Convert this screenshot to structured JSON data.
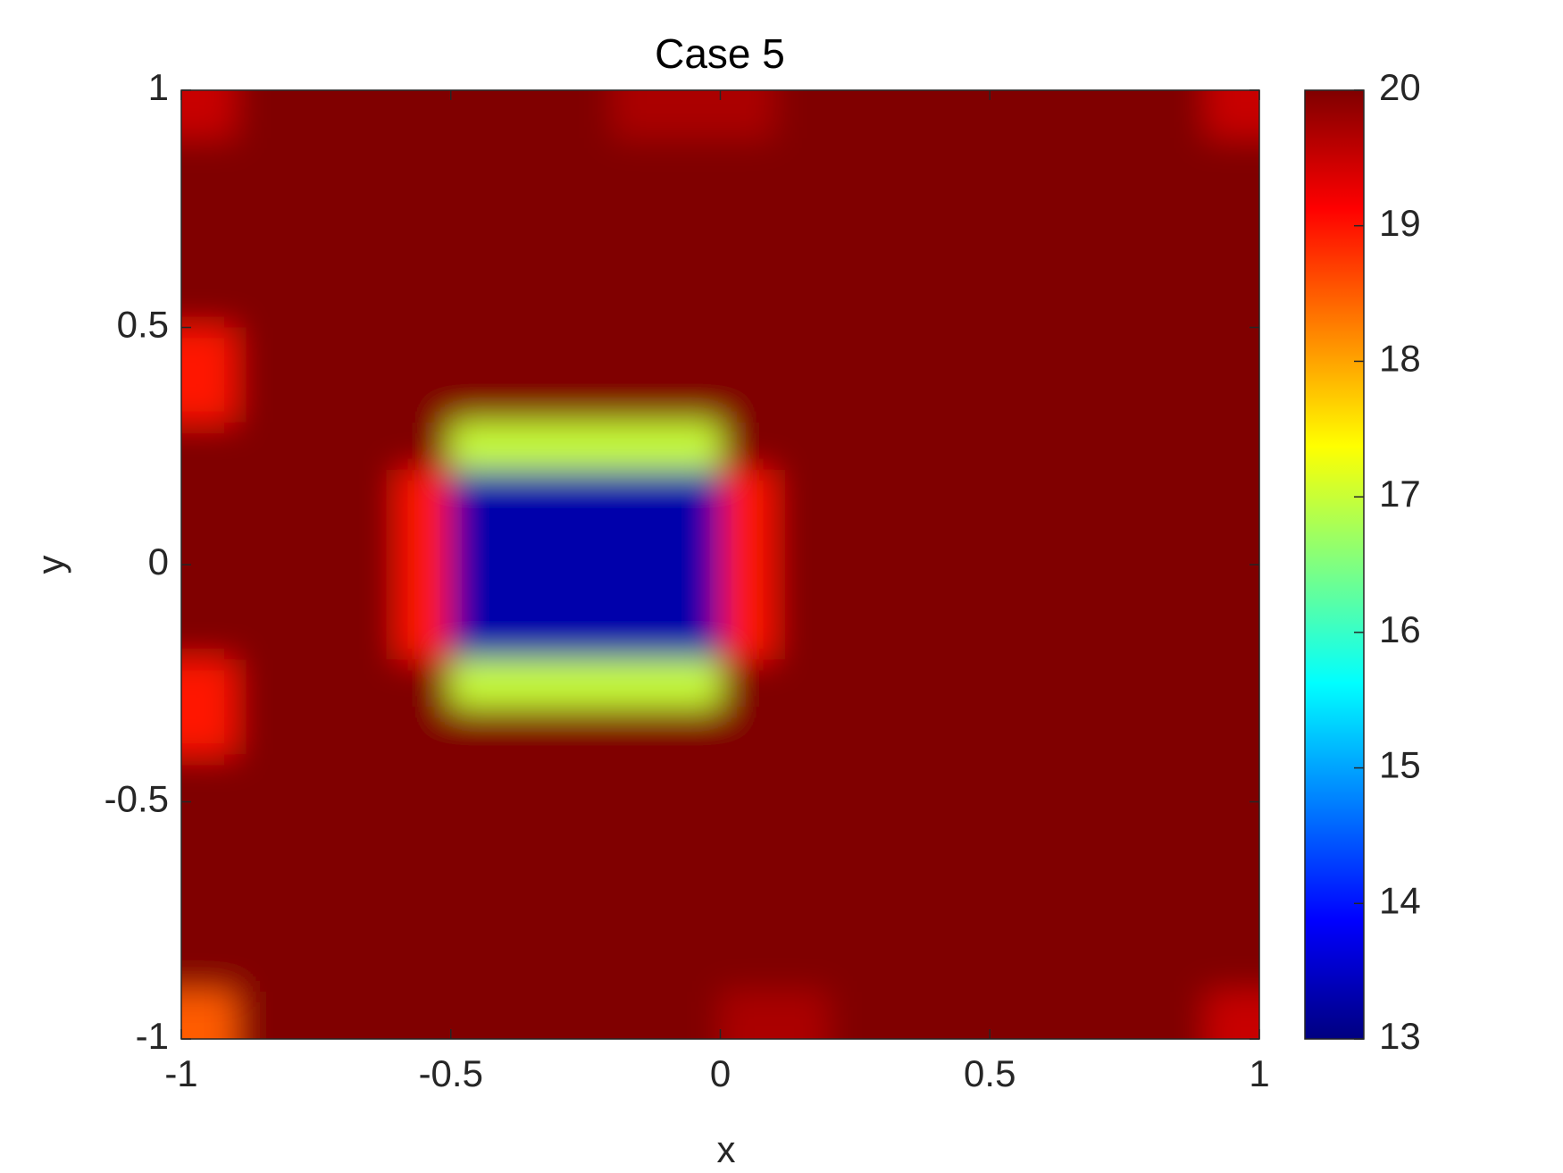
{
  "chart_data": {
    "type": "heatmap",
    "title": "Case 5",
    "xlabel": "x",
    "ylabel": "y",
    "xlim": [
      -1,
      1
    ],
    "ylim": [
      -1,
      1
    ],
    "xticks": [
      -1,
      -0.5,
      0,
      0.5,
      1
    ],
    "yticks": [
      -1,
      -0.5,
      0,
      0.5,
      1
    ],
    "colormap": "jet",
    "clim": [
      13,
      20
    ],
    "colorbar_ticks": [
      13,
      14,
      15,
      16,
      17,
      18,
      19,
      20
    ],
    "z": [
      [
        19.5,
        20,
        20,
        20,
        20,
        20,
        20,
        20,
        19.7,
        19.7,
        19.7,
        20,
        20,
        20,
        20,
        20,
        20,
        20,
        20,
        19.5
      ],
      [
        20,
        20,
        20,
        20,
        20,
        20,
        20,
        20,
        20,
        20,
        20,
        20,
        20,
        20,
        20,
        20,
        20,
        20,
        20,
        20
      ],
      [
        20,
        20,
        20,
        20,
        20,
        20,
        20,
        20,
        20,
        20,
        20,
        20,
        20,
        20,
        20,
        20,
        20,
        20,
        20,
        20
      ],
      [
        20,
        20,
        20,
        20,
        20,
        20,
        20,
        20,
        20,
        20,
        20,
        20,
        20,
        20,
        20,
        20,
        20,
        20,
        20,
        20
      ],
      [
        20,
        20,
        20,
        20,
        20,
        20,
        20,
        20,
        20,
        20,
        20,
        20,
        20,
        20,
        20,
        20,
        20,
        20,
        20,
        20
      ],
      [
        19,
        20,
        20,
        20,
        20,
        20,
        20,
        20,
        20,
        20,
        20,
        20,
        20,
        20,
        20,
        20,
        20,
        20,
        20,
        20
      ],
      [
        19,
        20,
        20,
        20,
        20,
        20,
        20,
        20,
        20,
        20,
        20,
        20,
        20,
        20,
        20,
        20,
        20,
        20,
        20,
        20
      ],
      [
        20,
        20,
        20,
        20,
        20,
        17,
        17,
        17,
        17,
        17,
        20,
        20,
        20,
        20,
        20,
        20,
        20,
        20,
        20,
        20
      ],
      [
        20,
        20,
        20,
        20,
        19,
        13.3,
        13.3,
        13.3,
        13.3,
        13.3,
        19,
        20,
        20,
        20,
        20,
        20,
        20,
        20,
        20,
        20
      ],
      [
        20,
        20,
        20,
        20,
        19,
        13.3,
        13.3,
        13.3,
        13.3,
        13.3,
        19,
        20,
        20,
        20,
        20,
        20,
        20,
        20,
        20,
        20
      ],
      [
        20,
        20,
        20,
        20,
        19,
        13.3,
        13.3,
        13.3,
        13.3,
        13.3,
        19,
        20,
        20,
        20,
        20,
        20,
        20,
        20,
        20,
        20
      ],
      [
        20,
        20,
        20,
        20,
        19,
        13.3,
        13.3,
        13.3,
        13.3,
        13.3,
        19,
        20,
        20,
        20,
        20,
        20,
        20,
        20,
        20,
        20
      ],
      [
        19,
        20,
        20,
        20,
        20,
        17,
        17,
        17,
        17,
        17,
        20,
        20,
        20,
        20,
        20,
        20,
        20,
        20,
        20,
        20
      ],
      [
        19,
        20,
        20,
        20,
        20,
        20,
        20,
        20,
        20,
        20,
        20,
        20,
        20,
        20,
        20,
        20,
        20,
        20,
        20,
        20
      ],
      [
        20,
        20,
        20,
        20,
        20,
        20,
        20,
        20,
        20,
        20,
        20,
        20,
        20,
        20,
        20,
        20,
        20,
        20,
        20,
        20
      ],
      [
        20,
        20,
        20,
        20,
        20,
        20,
        20,
        20,
        20,
        20,
        20,
        20,
        20,
        20,
        20,
        20,
        20,
        20,
        20,
        20
      ],
      [
        20,
        20,
        20,
        20,
        20,
        20,
        20,
        20,
        20,
        20,
        20,
        20,
        20,
        20,
        20,
        20,
        20,
        20,
        20,
        20
      ],
      [
        20,
        20,
        20,
        20,
        20,
        20,
        20,
        20,
        20,
        20,
        20,
        20,
        20,
        20,
        20,
        20,
        20,
        20,
        20,
        20
      ],
      [
        20,
        20,
        20,
        20,
        20,
        20,
        20,
        20,
        20,
        20,
        20,
        20,
        20,
        20,
        20,
        20,
        20,
        20,
        20,
        20
      ],
      [
        18.5,
        20,
        20,
        20,
        20,
        20,
        20,
        20,
        20,
        20,
        19.7,
        19.7,
        20,
        20,
        20,
        20,
        20,
        20,
        20,
        19.5
      ]
    ]
  }
}
